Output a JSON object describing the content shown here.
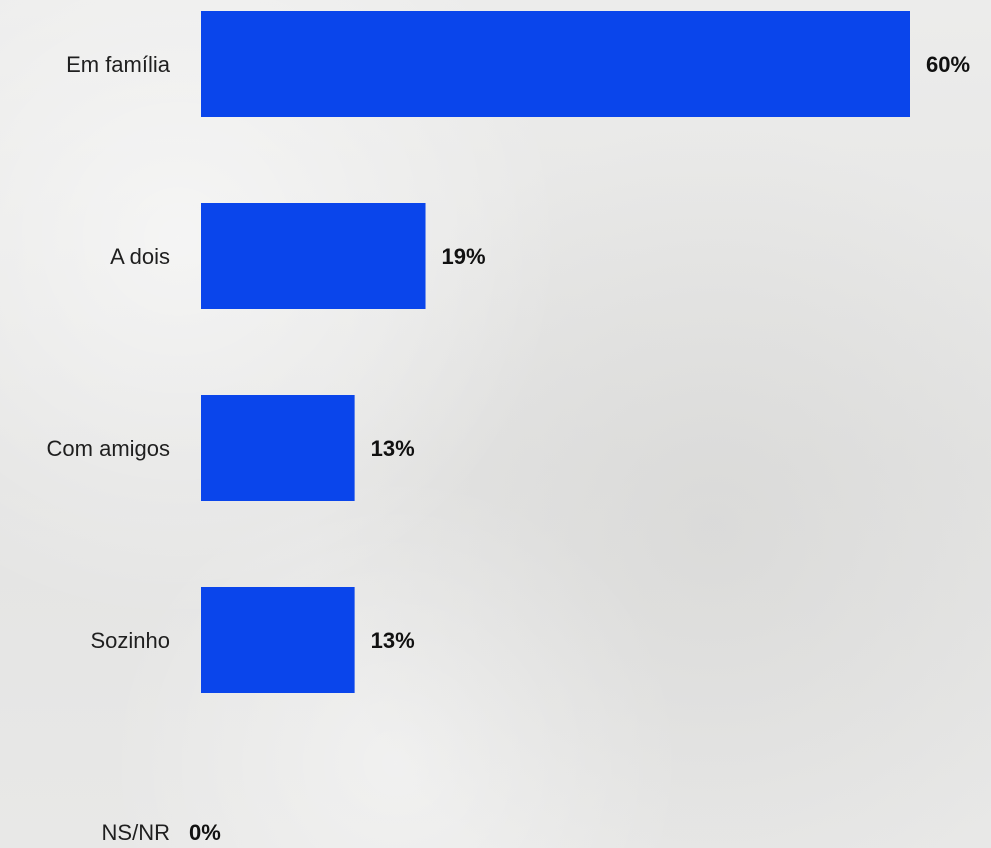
{
  "chart_data": {
    "type": "bar",
    "orientation": "horizontal",
    "categories": [
      "Em família",
      "A dois",
      "Com amigos",
      "Sozinho",
      "NS/NR"
    ],
    "values": [
      60,
      19,
      13,
      13,
      0
    ],
    "value_labels": [
      "60%",
      "19%",
      "13%",
      "13%",
      "0%"
    ],
    "xlim": [
      0,
      60
    ],
    "grid": false,
    "bar_color": "#0a45eb"
  }
}
